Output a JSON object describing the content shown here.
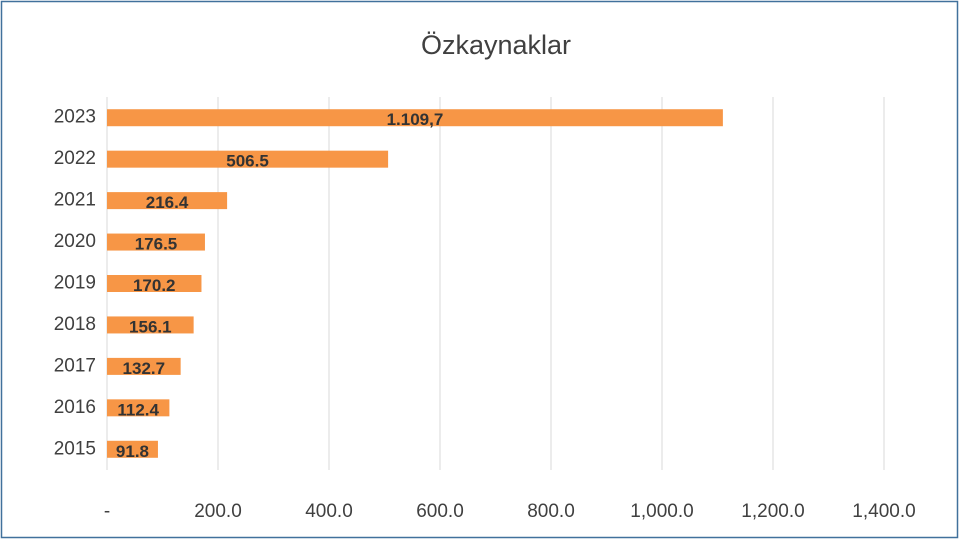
{
  "chart_data": {
    "type": "bar",
    "orientation": "horizontal",
    "title": "Özkaynaklar",
    "categories": [
      "2023",
      "2022",
      "2021",
      "2020",
      "2019",
      "2018",
      "2017",
      "2016",
      "2015"
    ],
    "values": [
      1109.7,
      506.5,
      216.4,
      176.5,
      170.2,
      156.1,
      132.7,
      112.4,
      91.8
    ],
    "value_labels": [
      "1.109,7",
      "506.5",
      "216.4",
      "176.5",
      "170.2",
      "156.1",
      "132.7",
      "112.4",
      "91.8"
    ],
    "color": "#f79646",
    "xlim": [
      0,
      1400
    ],
    "xticks": [
      {
        "value": 0,
        "label": "-"
      },
      {
        "value": 200,
        "label": "200.0"
      },
      {
        "value": 400,
        "label": "400.0"
      },
      {
        "value": 600,
        "label": "600.0"
      },
      {
        "value": 800,
        "label": "800.0"
      },
      {
        "value": 1000,
        "label": "1,000.0"
      },
      {
        "value": 1200,
        "label": "1,200.0"
      },
      {
        "value": 1400,
        "label": "1,400.0"
      }
    ],
    "grid": true
  }
}
